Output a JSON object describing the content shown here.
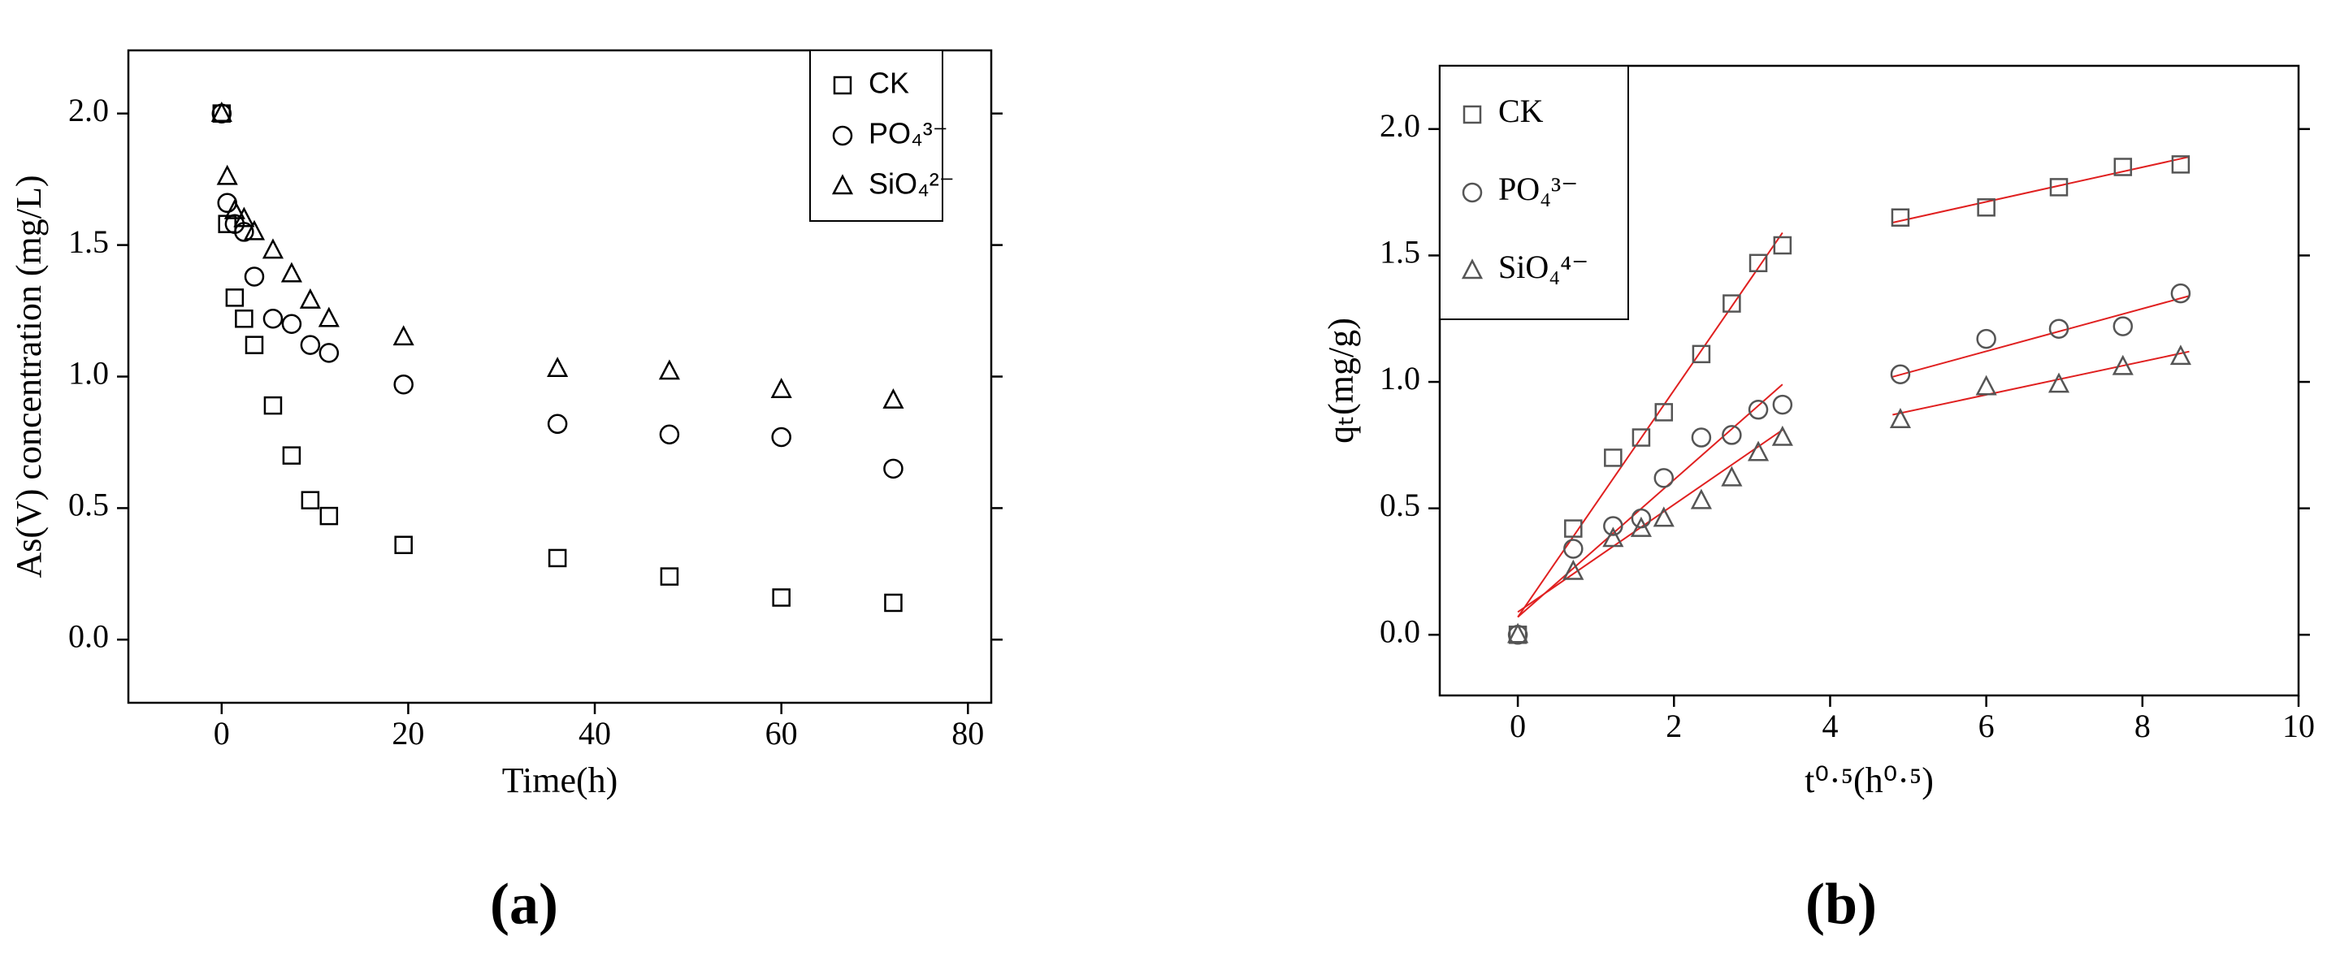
{
  "chart_data": [
    {
      "type": "scatter",
      "panel_label": "(a)",
      "x_label": "Time(h)",
      "y_label": "As(V) concentration (mg/L)",
      "xlim": [
        -10,
        82.5
      ],
      "ylim": [
        -0.24,
        2.24
      ],
      "xticks": [
        0,
        20,
        40,
        60,
        80
      ],
      "yticks": [
        {
          "value": 0,
          "label": "0.0"
        },
        {
          "value": 0.5,
          "label": "0.5"
        },
        {
          "value": 1,
          "label": "1.0"
        },
        {
          "value": 1.5,
          "label": "1.5"
        },
        {
          "value": 2,
          "label": "2.0"
        }
      ],
      "legend": "upper right",
      "x": [
        0,
        0.6,
        1.4,
        2.4,
        3.5,
        5.5,
        7.5,
        9.5,
        11.5,
        19.5,
        36,
        48,
        60,
        72
      ],
      "series": [
        {
          "name": "CK",
          "marker": "square",
          "color": "#000000",
          "values": [
            2.0,
            1.58,
            1.3,
            1.22,
            1.12,
            0.89,
            0.7,
            0.53,
            0.47,
            0.36,
            0.31,
            0.24,
            0.16,
            0.14
          ]
        },
        {
          "name": "PO₄³⁻",
          "marker": "circle",
          "color": "#000000",
          "values": [
            2.0,
            1.66,
            1.58,
            1.55,
            1.38,
            1.22,
            1.2,
            1.12,
            1.09,
            0.97,
            0.82,
            0.78,
            0.77,
            0.65
          ]
        },
        {
          "name": "SiO₄²⁻",
          "marker": "triangle",
          "color": "#000000",
          "values": [
            2.0,
            1.76,
            1.63,
            1.6,
            1.55,
            1.48,
            1.39,
            1.29,
            1.22,
            1.15,
            1.03,
            1.02,
            0.95,
            0.91
          ]
        }
      ]
    },
    {
      "type": "scatter",
      "panel_label": "(b)",
      "x_label": "t⁰·⁵(h⁰·⁵)",
      "y_label": "qₜ(mg/g)",
      "xlim": [
        -1,
        10
      ],
      "ylim": [
        -0.24,
        2.25
      ],
      "xticks": [
        0,
        2,
        4,
        6,
        8,
        10
      ],
      "yticks": [
        {
          "value": 0,
          "label": "0.0"
        },
        {
          "value": 0.5,
          "label": "0.5"
        },
        {
          "value": 1,
          "label": "1.0"
        },
        {
          "value": 1.5,
          "label": "1.5"
        },
        {
          "value": 2,
          "label": "2.0"
        }
      ],
      "legend": "upper left",
      "x": [
        0,
        0.71,
        1.22,
        1.58,
        1.87,
        2.35,
        2.74,
        3.08,
        3.39,
        4.9,
        6.0,
        6.93,
        7.75,
        8.49
      ],
      "series": [
        {
          "name": "CK",
          "marker": "square",
          "color": "#555555",
          "values": [
            0,
            0.42,
            0.7,
            0.78,
            0.88,
            1.11,
            1.31,
            1.47,
            1.54,
            1.65,
            1.69,
            1.77,
            1.85,
            1.86
          ]
        },
        {
          "name": "PO₄³⁻",
          "marker": "circle",
          "color": "#555555",
          "values": [
            0,
            0.34,
            0.43,
            0.46,
            0.62,
            0.78,
            0.79,
            0.89,
            0.91,
            1.03,
            1.17,
            1.21,
            1.22,
            1.35
          ]
        },
        {
          "name": "SiO₄⁴⁻",
          "marker": "triangle",
          "color": "#555555",
          "values": [
            0,
            0.25,
            0.38,
            0.42,
            0.46,
            0.53,
            0.62,
            0.72,
            0.78,
            0.85,
            0.98,
            0.99,
            1.06,
            1.1
          ]
        }
      ],
      "fit_color": "#e02020",
      "fits": [
        {
          "x": [
            0,
            3.39
          ],
          "values": [
            0.07,
            1.59
          ]
        },
        {
          "x": [
            0,
            3.39
          ],
          "values": [
            0.07,
            0.99
          ]
        },
        {
          "x": [
            0,
            3.39
          ],
          "values": [
            0.09,
            0.81
          ]
        },
        {
          "x": [
            4.8,
            8.6
          ],
          "values": [
            1.63,
            1.89
          ]
        },
        {
          "x": [
            4.8,
            8.6
          ],
          "values": [
            1.02,
            1.34
          ]
        },
        {
          "x": [
            4.8,
            8.6
          ],
          "values": [
            0.87,
            1.12
          ]
        }
      ]
    }
  ]
}
